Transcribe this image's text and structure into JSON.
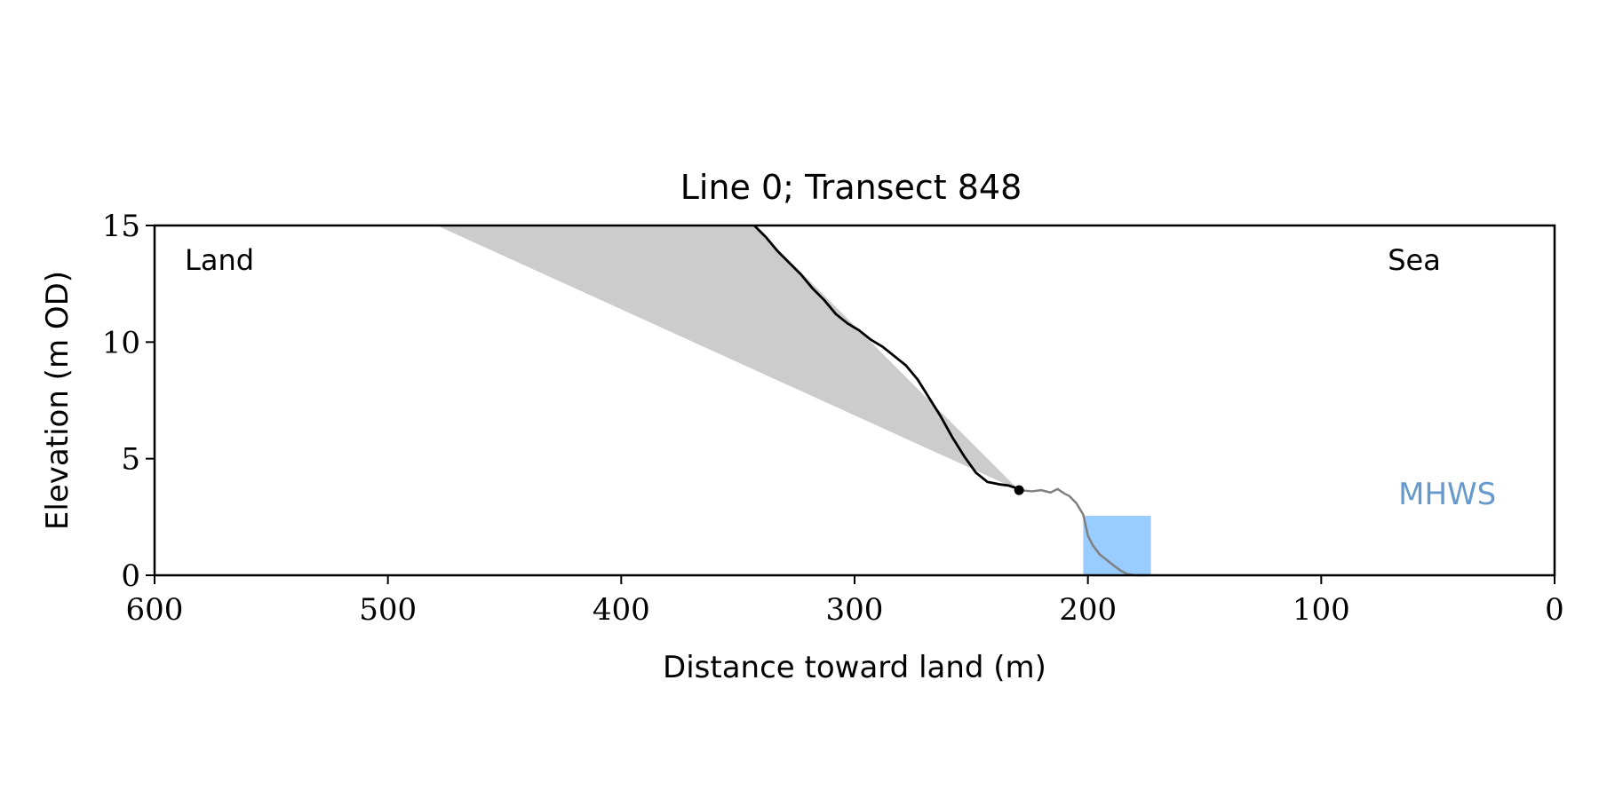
{
  "chart_data": {
    "type": "area",
    "title": "Line 0; Transect 848",
    "xlabel": "Distance toward land (m)",
    "ylabel": "Elevation (m OD)",
    "xlim": [
      600,
      0
    ],
    "ylim": [
      0,
      15
    ],
    "xticks": [
      600,
      500,
      400,
      300,
      200,
      100,
      0
    ],
    "yticks": [
      0,
      5,
      10,
      15
    ],
    "annotations": {
      "land": "Land",
      "sea": "Sea",
      "mhws": "MHWS"
    },
    "colors": {
      "cliff_line": "#000000",
      "foreshore_line": "#808080",
      "shaded_area": "#cccccc",
      "water_box": "#99ccff",
      "mhws_text": "#6699cc"
    },
    "cliff_profile": {
      "x": [
        343,
        338,
        333,
        328,
        323,
        318,
        313,
        308,
        303,
        298,
        293,
        288,
        283,
        278,
        273,
        268,
        263,
        258,
        253,
        248,
        243,
        238,
        234,
        231,
        229.5
      ],
      "y": [
        15.0,
        14.5,
        13.9,
        13.4,
        12.9,
        12.3,
        11.8,
        11.2,
        10.8,
        10.5,
        10.1,
        9.8,
        9.4,
        9.0,
        8.4,
        7.6,
        6.8,
        5.9,
        5.1,
        4.4,
        4.0,
        3.9,
        3.85,
        3.75,
        3.65
      ]
    },
    "cliff_toe": {
      "x": 229.5,
      "y": 3.65
    },
    "foreshore_profile": {
      "x": [
        229.5,
        224,
        220,
        216,
        213,
        210,
        208,
        205,
        202,
        200,
        198,
        195,
        190,
        186,
        183,
        180,
        177,
        174
      ],
      "y": [
        3.65,
        3.6,
        3.65,
        3.55,
        3.7,
        3.5,
        3.4,
        3.1,
        2.6,
        1.7,
        1.3,
        0.9,
        0.5,
        0.2,
        0.05,
        0.0,
        0.0,
        0.0
      ]
    },
    "shaded_area": {
      "x": [
        479,
        343,
        229.5
      ],
      "y": [
        15.0,
        15.0,
        3.65
      ]
    },
    "water_box": {
      "x_range": [
        202,
        173
      ],
      "y_range": [
        0,
        2.55
      ]
    },
    "mhws_label": {
      "x": 46,
      "y": 3.5
    }
  }
}
